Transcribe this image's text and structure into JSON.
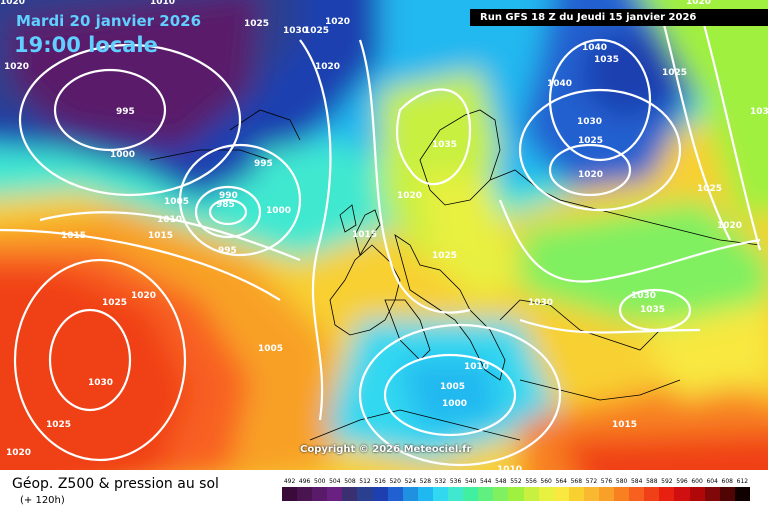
{
  "header": {
    "date": "Mardi 20 janvier 2026",
    "time": "19:00 locale",
    "run": "Run GFS 18 Z du Jeudi 15 janvier 2026"
  },
  "copyright": "Copyright © 2026 Meteociel.fr",
  "footer": {
    "title": "Géop. Z500 & pression au sol",
    "subtitle": "(+ 120h)"
  },
  "legend": {
    "values": [
      "492",
      "496",
      "500",
      "504",
      "508",
      "512",
      "516",
      "520",
      "524",
      "528",
      "532",
      "536",
      "540",
      "544",
      "548",
      "552",
      "556",
      "560",
      "564",
      "568",
      "572",
      "576",
      "580",
      "584",
      "588",
      "592",
      "596",
      "600",
      "604",
      "608",
      "612"
    ],
    "colors": [
      "#3a0a3a",
      "#4a1450",
      "#5a1a6a",
      "#6a2080",
      "#3a2f70",
      "#2a3f90",
      "#1e3fb0",
      "#2060d0",
      "#2090e0",
      "#20b8f0",
      "#30d8f0",
      "#40e8d0",
      "#40f0a0",
      "#60f080",
      "#80f060",
      "#a0f040",
      "#c8f040",
      "#e8f040",
      "#f8e840",
      "#f8d030",
      "#f8b830",
      "#f8a028",
      "#f88020",
      "#f86020",
      "#f04018",
      "#e82010",
      "#d01010",
      "#b00808",
      "#800808",
      "#500404",
      "#100000"
    ]
  },
  "isobars": [
    "1010",
    "1020",
    "1025",
    "1020",
    "1020",
    "1020",
    "1025",
    "1040",
    "1030",
    "995",
    "1000",
    "995",
    "1005",
    "1010",
    "990",
    "985",
    "1000",
    "995",
    "1015",
    "1015",
    "1025",
    "1020",
    "1030",
    "1025",
    "1020",
    "1005",
    "1015",
    "1020",
    "1025",
    "1035",
    "1030",
    "1040",
    "1035",
    "1025",
    "1020",
    "1030",
    "1025",
    "1020",
    "1025",
    "1030",
    "1035",
    "1030",
    "1010",
    "1020",
    "1005",
    "1000",
    "1015",
    "1010"
  ]
}
